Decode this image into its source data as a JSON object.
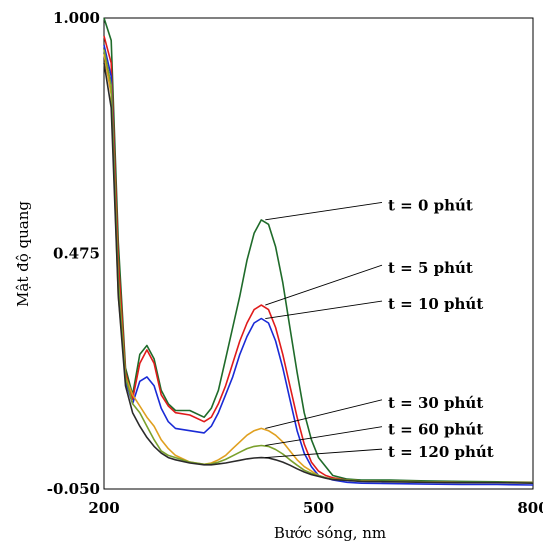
{
  "chart_data": {
    "type": "line",
    "title": "",
    "xlabel": "Bước sóng, nm",
    "ylabel": "Mật độ quang",
    "xlim": [
      200,
      800
    ],
    "ylim": [
      -0.05,
      1.0
    ],
    "x_ticks": [
      200,
      500,
      800
    ],
    "y_ticks": [
      {
        "value": -0.05,
        "label": "-0.050"
      },
      {
        "value": 0.475,
        "label": "0.475"
      },
      {
        "value": 1.0,
        "label": "1.000"
      }
    ],
    "grid": false,
    "legend": "none",
    "series": [
      {
        "name": "t = 0 phút",
        "color": "#1f6b2a",
        "label_x": 600,
        "label_y": 0.58,
        "x": [
          200,
          210,
          220,
          230,
          240,
          250,
          260,
          270,
          280,
          290,
          300,
          320,
          340,
          350,
          360,
          370,
          380,
          390,
          400,
          410,
          420,
          430,
          440,
          450,
          460,
          470,
          480,
          490,
          500,
          510,
          520,
          540,
          560,
          600,
          650,
          700,
          750,
          800
        ],
        "y": [
          1.0,
          0.95,
          0.5,
          0.22,
          0.16,
          0.25,
          0.27,
          0.24,
          0.17,
          0.14,
          0.125,
          0.125,
          0.11,
          0.13,
          0.17,
          0.24,
          0.31,
          0.38,
          0.46,
          0.52,
          0.55,
          0.54,
          0.49,
          0.41,
          0.31,
          0.21,
          0.12,
          0.06,
          0.02,
          0.0,
          -0.02,
          -0.028,
          -0.03,
          -0.03,
          -0.032,
          -0.033,
          -0.034,
          -0.035
        ]
      },
      {
        "name": "t = 5 phút",
        "color": "#e01b1b",
        "label_x": 600,
        "label_y": 0.44,
        "x": [
          200,
          210,
          220,
          230,
          240,
          250,
          260,
          270,
          280,
          290,
          300,
          320,
          340,
          350,
          360,
          370,
          380,
          390,
          400,
          410,
          420,
          430,
          440,
          450,
          460,
          470,
          480,
          490,
          500,
          510,
          520,
          540,
          560,
          600,
          650,
          700,
          750,
          800
        ],
        "y": [
          0.96,
          0.9,
          0.46,
          0.21,
          0.15,
          0.23,
          0.26,
          0.23,
          0.16,
          0.135,
          0.12,
          0.115,
          0.1,
          0.11,
          0.14,
          0.18,
          0.23,
          0.28,
          0.32,
          0.35,
          0.36,
          0.35,
          0.31,
          0.25,
          0.18,
          0.11,
          0.05,
          0.01,
          -0.01,
          -0.02,
          -0.025,
          -0.03,
          -0.032,
          -0.033,
          -0.034,
          -0.035,
          -0.035,
          -0.036
        ]
      },
      {
        "name": "t = 10 phút",
        "color": "#1a2bd6",
        "label_x": 600,
        "label_y": 0.36,
        "x": [
          200,
          210,
          220,
          230,
          240,
          250,
          260,
          270,
          280,
          290,
          300,
          320,
          340,
          350,
          360,
          370,
          380,
          390,
          400,
          410,
          420,
          430,
          440,
          450,
          460,
          470,
          480,
          490,
          500,
          510,
          520,
          540,
          560,
          600,
          650,
          700,
          750,
          800
        ],
        "y": [
          0.94,
          0.87,
          0.4,
          0.19,
          0.14,
          0.19,
          0.2,
          0.18,
          0.13,
          0.1,
          0.085,
          0.08,
          0.075,
          0.09,
          0.12,
          0.16,
          0.2,
          0.25,
          0.29,
          0.32,
          0.33,
          0.32,
          0.28,
          0.22,
          0.15,
          0.08,
          0.03,
          0.0,
          -0.02,
          -0.025,
          -0.03,
          -0.035,
          -0.037,
          -0.038,
          -0.039,
          -0.04,
          -0.04,
          -0.041
        ]
      },
      {
        "name": "t = 30 phút",
        "color": "#e0a020",
        "label_x": 600,
        "label_y": 0.14,
        "x": [
          200,
          210,
          220,
          230,
          240,
          250,
          260,
          270,
          280,
          290,
          300,
          320,
          340,
          350,
          360,
          370,
          380,
          390,
          400,
          410,
          420,
          430,
          440,
          450,
          460,
          470,
          480,
          490,
          500,
          510,
          520,
          540,
          560,
          600,
          650,
          700,
          750,
          800
        ],
        "y": [
          0.92,
          0.83,
          0.38,
          0.2,
          0.16,
          0.135,
          0.11,
          0.09,
          0.06,
          0.04,
          0.025,
          0.01,
          0.005,
          0.008,
          0.015,
          0.025,
          0.04,
          0.055,
          0.07,
          0.08,
          0.085,
          0.08,
          0.07,
          0.055,
          0.035,
          0.015,
          0.0,
          -0.01,
          -0.02,
          -0.025,
          -0.028,
          -0.03,
          -0.032,
          -0.033,
          -0.034,
          -0.035,
          -0.035,
          -0.036
        ]
      },
      {
        "name": "t = 60 phút",
        "color": "#7aa02c",
        "label_x": 600,
        "label_y": 0.08,
        "x": [
          200,
          210,
          220,
          230,
          240,
          250,
          260,
          270,
          280,
          290,
          300,
          320,
          340,
          350,
          360,
          370,
          380,
          390,
          400,
          410,
          420,
          430,
          440,
          450,
          460,
          470,
          480,
          490,
          500,
          510,
          520,
          540,
          560,
          600,
          650,
          700,
          750,
          800
        ],
        "y": [
          0.93,
          0.85,
          0.42,
          0.2,
          0.14,
          0.12,
          0.09,
          0.06,
          0.035,
          0.025,
          0.02,
          0.01,
          0.005,
          0.006,
          0.01,
          0.016,
          0.024,
          0.032,
          0.04,
          0.045,
          0.047,
          0.045,
          0.038,
          0.028,
          0.015,
          0.003,
          -0.008,
          -0.015,
          -0.02,
          -0.025,
          -0.028,
          -0.03,
          -0.032,
          -0.033,
          -0.034,
          -0.035,
          -0.035,
          -0.036
        ]
      },
      {
        "name": "t = 120 phút",
        "color": "#2b2b2b",
        "label_x": 600,
        "label_y": 0.03,
        "x": [
          200,
          210,
          220,
          230,
          240,
          250,
          260,
          270,
          280,
          290,
          300,
          320,
          340,
          350,
          360,
          370,
          380,
          390,
          400,
          410,
          420,
          430,
          440,
          450,
          460,
          470,
          480,
          490,
          500,
          510,
          520,
          540,
          560,
          600,
          650,
          700,
          750,
          800
        ],
        "y": [
          0.9,
          0.8,
          0.38,
          0.18,
          0.12,
          0.09,
          0.065,
          0.045,
          0.03,
          0.02,
          0.015,
          0.008,
          0.004,
          0.004,
          0.006,
          0.008,
          0.011,
          0.014,
          0.017,
          0.019,
          0.02,
          0.019,
          0.015,
          0.01,
          0.003,
          -0.005,
          -0.012,
          -0.018,
          -0.022,
          -0.026,
          -0.029,
          -0.031,
          -0.033,
          -0.034,
          -0.035,
          -0.036,
          -0.036,
          -0.037
        ]
      }
    ]
  }
}
